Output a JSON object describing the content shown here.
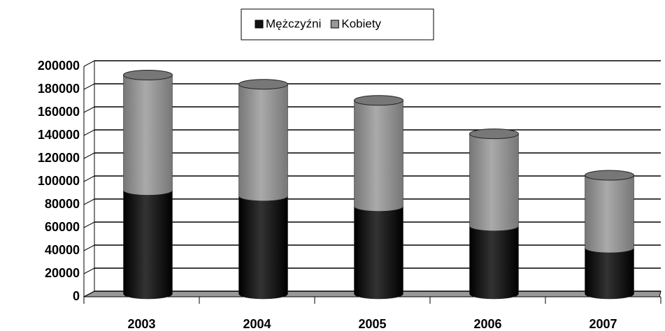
{
  "chart_data": {
    "type": "bar",
    "stacked": true,
    "three_d": true,
    "categories": [
      "2003",
      "2004",
      "2005",
      "2006",
      "2007"
    ],
    "series": [
      {
        "name": "Mężczyźni",
        "color": "#111111",
        "values": [
          90000,
          85000,
          76000,
          59000,
          40000
        ]
      },
      {
        "name": "Kobiety",
        "color": "#999999",
        "values": [
          100000,
          97000,
          92000,
          80000,
          63000
        ]
      }
    ],
    "ylim": [
      0,
      200000
    ],
    "yticks": [
      0,
      20000,
      40000,
      60000,
      80000,
      100000,
      120000,
      140000,
      160000,
      180000,
      200000
    ],
    "grid": true,
    "legend": "top"
  }
}
